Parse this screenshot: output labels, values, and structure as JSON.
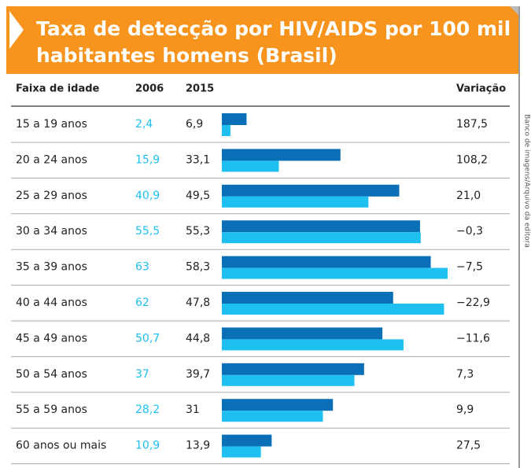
{
  "chart_data": {
    "type": "bar",
    "title": [
      "Taxa de detecção por HIV/AIDS por 100 mil",
      "habitantes homens (Brasil)"
    ],
    "category_label": "Faixa de idade",
    "categories": [
      "15 a 19 anos",
      "20 a 24 anos",
      "25 a 29 anos",
      "30 a 34 anos",
      "35 a 39 anos",
      "40 a 44 anos",
      "45 a 49 anos",
      "50 a 54 anos",
      "55 a 59 anos",
      "60 anos ou mais"
    ],
    "series": [
      {
        "name": "2006",
        "color": "#1ec0f0",
        "values": [
          2.4,
          15.9,
          40.9,
          55.5,
          63,
          62,
          50.7,
          37,
          28.2,
          10.9
        ],
        "value_labels": [
          "2,4",
          "15,9",
          "40,9",
          "55,5",
          "63",
          "62",
          "50,7",
          "37",
          "28,2",
          "10,9"
        ]
      },
      {
        "name": "2015",
        "color": "#0a6fb6",
        "values": [
          6.9,
          33.1,
          49.5,
          55.3,
          58.3,
          47.8,
          44.8,
          39.7,
          31,
          13.9
        ],
        "value_labels": [
          "6,9",
          "33,1",
          "49,5",
          "55,3",
          "58,3",
          "47,8",
          "44,8",
          "39,7",
          "31",
          "13,9"
        ]
      }
    ],
    "variation": {
      "name": "Variação",
      "values": [
        187.5,
        108.2,
        21.0,
        -0.3,
        -7.5,
        -22.9,
        -11.6,
        7.3,
        9.9,
        27.5
      ],
      "value_labels": [
        "187,5",
        "108,2",
        "21,0",
        "−0,3",
        "−7,5",
        "−22,9",
        "−11,6",
        "7,3",
        "9,9",
        "27,5"
      ]
    },
    "source": "Banco de imagens/Arquivo da editora"
  }
}
